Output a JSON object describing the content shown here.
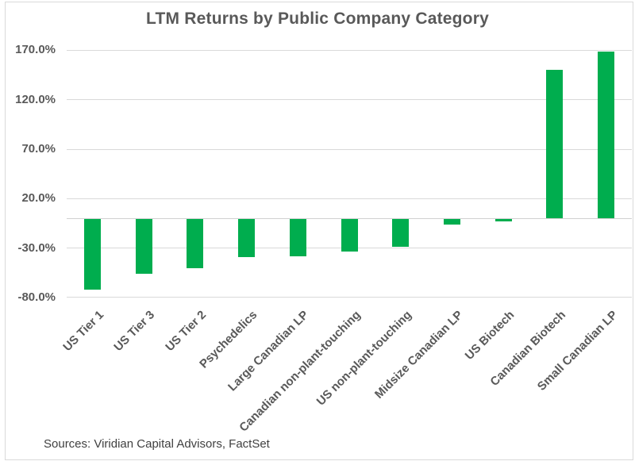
{
  "source_note": "Sources: Viridian Capital Advisors, FactSet",
  "colors": {
    "bar_green": "#00AD4E",
    "gridline": "#D9D9D9",
    "text": "#595959"
  },
  "chart_data": {
    "type": "bar",
    "title": "LTM Returns by Public Company Category",
    "categories": [
      "US Tier 1",
      "US Tier 3",
      "US Tier 2",
      "Psychedelics",
      "Large Canadian LP",
      "Canadian non-plant-touching",
      "US non-plant-touching",
      "Midsize Canadian LP",
      "US Biotech",
      "Canadian Biotech",
      "Small Canadian LP"
    ],
    "values": [
      -72,
      -56,
      -50,
      -39,
      -38,
      -33,
      -28,
      -6,
      -3,
      150,
      168
    ],
    "unit": "%",
    "xlabel": "",
    "ylabel": "",
    "ylim": [
      -80,
      170
    ],
    "ytick_step": 50,
    "yticks": [
      {
        "value": 170,
        "label": "170.0%"
      },
      {
        "value": 120,
        "label": "120.0%"
      },
      {
        "value": 70,
        "label": "70.0%"
      },
      {
        "value": 20,
        "label": "20.0%"
      },
      {
        "value": -30,
        "label": "-30.0%"
      },
      {
        "value": -80,
        "label": "-80.0%"
      }
    ],
    "grid": true,
    "legend": false,
    "bar_color": "#00AD4E"
  }
}
